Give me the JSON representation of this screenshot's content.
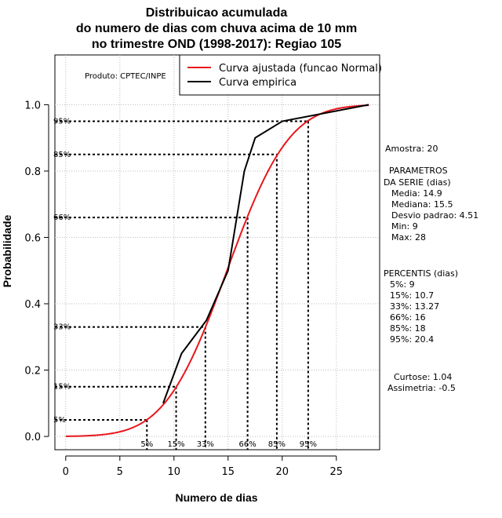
{
  "chart_data": {
    "type": "line",
    "title": [
      "Distribuicao acumulada",
      "do numero de dias com chuva acima de 10 mm",
      "no trimestre OND (1998-2017): Regiao 105"
    ],
    "xlabel": "Numero de dias",
    "ylabel": "Probabilidade",
    "xlim": [
      -1,
      29
    ],
    "ylim": [
      -0.04,
      1.15
    ],
    "xticks": [
      0,
      5,
      10,
      15,
      20,
      25
    ],
    "yticks": [
      0.0,
      0.2,
      0.4,
      0.6,
      0.8,
      1.0
    ],
    "xtick_labels": [
      "0",
      "5",
      "10",
      "15",
      "20",
      "25"
    ],
    "ytick_labels": [
      "0.0",
      "0.2",
      "0.4",
      "0.6",
      "0.8",
      "1.0"
    ],
    "grid": true,
    "producer": "Produto: CPTEC/INPE",
    "legend": {
      "position": "top-right",
      "entries": [
        {
          "label": "Curva ajustada (funcao Normal)",
          "color": "#e8161b"
        },
        {
          "label": "Curva empirica",
          "color": "#000000"
        }
      ]
    },
    "series": [
      {
        "name": "Curva ajustada (funcao Normal)",
        "kind": "normal_cdf",
        "mean": 14.9,
        "sd": 4.51,
        "x_range": [
          0,
          28
        ],
        "color": "#e8161b"
      },
      {
        "name": "Curva empirica",
        "kind": "empirical",
        "x": [
          9,
          10.7,
          13,
          15,
          16.5,
          17.5,
          20,
          28
        ],
        "y": [
          0.1,
          0.25,
          0.35,
          0.5,
          0.8,
          0.9,
          0.95,
          1.0
        ],
        "color": "#000000"
      }
    ],
    "percentiles": [
      {
        "label": "5%",
        "prob": 0.05,
        "x": 7.5
      },
      {
        "label": "15%",
        "prob": 0.15,
        "x": 10.2
      },
      {
        "label": "33%",
        "prob": 0.33,
        "x": 12.9
      },
      {
        "label": "66%",
        "prob": 0.66,
        "x": 16.8
      },
      {
        "label": "85%",
        "prob": 0.85,
        "x": 19.5
      },
      {
        "label": "95%",
        "prob": 0.95,
        "x": 22.4
      }
    ],
    "side_panel": {
      "amostra": "Amostra: 20",
      "parametros_title_1": "PARAMETROS",
      "parametros_title_2": "DA SERIE (dias)",
      "parametros": [
        "Media: 14.9",
        "Mediana: 15.5",
        "Desvio padrao: 4.51",
        "Min: 9",
        "Max: 28"
      ],
      "percentis_title": "PERCENTIS (dias)",
      "percentis": [
        "5%: 9",
        "15%: 10.7",
        "33%: 13.27",
        "66%: 16",
        "85%: 18",
        "95%: 20.4"
      ],
      "curtose": "Curtose: 1.04",
      "assimetria": "Assimetria: -0.5"
    }
  }
}
